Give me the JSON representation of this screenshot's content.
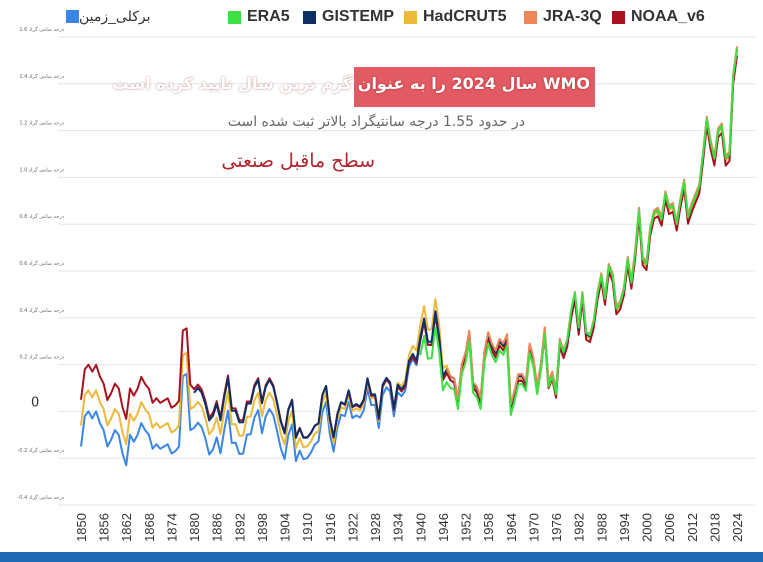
{
  "legend": {
    "berkeley": {
      "label": "برکلی_زمین",
      "color": "#3a86e8"
    },
    "era5": {
      "label": "ERA5",
      "color": "#3ee043"
    },
    "gistemp": {
      "label": "GISTEMP",
      "color": "#0e2f66"
    },
    "hadcrut5": {
      "label": "HadCRUT5",
      "color": "#ecb93b"
    },
    "jra3q": {
      "label": "JRA-3Q",
      "color": "#ec8757"
    },
    "noaa": {
      "label": "NOAA_v6",
      "color": "#a6131f"
    }
  },
  "annotations": {
    "title": "WMO سال 2024 را به عنوان گرم ترین سال تایید کرده است",
    "subtitle": "در حدود 1.55 درجه سانتیگراد بالاتر ثبت شده است",
    "baseline_note": "سطح ماقبل صنعتی",
    "title_box_color": "#e25a63"
  },
  "chart_data": {
    "type": "line",
    "x_start": 1850,
    "x_end": 2024,
    "ylim": [
      -0.4,
      1.6
    ],
    "yticks": [
      {
        "value": 1.6,
        "label": "1.6 درجه سانتی گراد"
      },
      {
        "value": 1.4,
        "label": "1.4 درجه سانتی گراد"
      },
      {
        "value": 1.2,
        "label": "1.2 درجه سانتی گراد"
      },
      {
        "value": 1.0,
        "label": "1.0 درجه سانتی گراد"
      },
      {
        "value": 0.8,
        "label": "0.8 درجه سانتی گراد"
      },
      {
        "value": 0.6,
        "label": "0.6 درجه سانتی گراد"
      },
      {
        "value": 0.4,
        "label": "0.4 درجه سانتی گراد"
      },
      {
        "value": 0.2,
        "label": "0.2 درجه سانتی گراد"
      },
      {
        "value": 0,
        "label": "0"
      },
      {
        "value": -0.2,
        "label": "-0.2 درجه سانتی گراد"
      },
      {
        "value": -0.4,
        "label": "-0.4 درجه سانتی گراد"
      }
    ],
    "xticks": [
      "1850",
      "1856",
      "1862",
      "1868",
      "1874",
      "1880",
      "1886",
      "1892",
      "1898",
      "1904",
      "1910",
      "1916",
      "1922",
      "1928",
      "1934",
      "1940",
      "1946",
      "1952",
      "1958",
      "1964",
      "1970",
      "1976",
      "1982",
      "1988",
      "1994",
      "2000",
      "2006",
      "2012",
      "2018",
      "2024"
    ],
    "anchors": [
      [
        1850,
        0.05
      ],
      [
        1851,
        0.18
      ],
      [
        1852,
        0.2
      ],
      [
        1853,
        0.17
      ],
      [
        1854,
        0.2
      ],
      [
        1855,
        0.15
      ],
      [
        1856,
        0.12
      ],
      [
        1857,
        0.05
      ],
      [
        1858,
        0.08
      ],
      [
        1859,
        0.12
      ],
      [
        1860,
        0.1
      ],
      [
        1861,
        0.02
      ],
      [
        1862,
        -0.03
      ],
      [
        1863,
        0.1
      ],
      [
        1864,
        0.07
      ],
      [
        1865,
        0.1
      ],
      [
        1866,
        0.15
      ],
      [
        1867,
        0.12
      ],
      [
        1868,
        0.1
      ],
      [
        1869,
        0.04
      ],
      [
        1870,
        0.06
      ],
      [
        1871,
        0.04
      ],
      [
        1872,
        0.05
      ],
      [
        1873,
        0.06
      ],
      [
        1874,
        0.02
      ],
      [
        1875,
        0.03
      ],
      [
        1876,
        0.05
      ],
      [
        1877,
        0.35
      ],
      [
        1878,
        0.36
      ],
      [
        1879,
        0.12
      ],
      [
        1880,
        0.1
      ],
      [
        1881,
        0.12
      ],
      [
        1882,
        0.1
      ],
      [
        1883,
        0.05
      ],
      [
        1884,
        -0.02
      ],
      [
        1885,
        0.0
      ],
      [
        1886,
        0.05
      ],
      [
        1887,
        -0.02
      ],
      [
        1888,
        0.08
      ],
      [
        1889,
        0.16
      ],
      [
        1890,
        0.02
      ],
      [
        1891,
        0.02
      ],
      [
        1892,
        -0.03
      ],
      [
        1893,
        -0.03
      ],
      [
        1894,
        0.05
      ],
      [
        1895,
        0.05
      ],
      [
        1896,
        0.12
      ],
      [
        1897,
        0.15
      ],
      [
        1898,
        0.05
      ],
      [
        1899,
        0.12
      ],
      [
        1900,
        0.15
      ],
      [
        1901,
        0.12
      ],
      [
        1902,
        0.05
      ],
      [
        1903,
        -0.03
      ],
      [
        1904,
        -0.08
      ],
      [
        1905,
        0.02
      ],
      [
        1906,
        0.06
      ],
      [
        1907,
        -0.1
      ],
      [
        1908,
        -0.06
      ],
      [
        1909,
        -0.1
      ],
      [
        1910,
        -0.1
      ],
      [
        1911,
        -0.08
      ],
      [
        1912,
        -0.05
      ],
      [
        1913,
        -0.04
      ],
      [
        1914,
        0.08
      ],
      [
        1915,
        0.12
      ],
      [
        1916,
        -0.02
      ],
      [
        1917,
        -0.1
      ],
      [
        1918,
        0.0
      ],
      [
        1919,
        0.05
      ],
      [
        1920,
        0.04
      ],
      [
        1921,
        0.1
      ],
      [
        1922,
        0.03
      ],
      [
        1923,
        0.04
      ],
      [
        1924,
        0.03
      ],
      [
        1925,
        0.06
      ],
      [
        1926,
        0.15
      ],
      [
        1927,
        0.08
      ],
      [
        1928,
        0.08
      ],
      [
        1929,
        -0.02
      ],
      [
        1930,
        0.12
      ],
      [
        1931,
        0.15
      ],
      [
        1932,
        0.13
      ],
      [
        1933,
        0.02
      ],
      [
        1934,
        0.12
      ],
      [
        1935,
        0.1
      ],
      [
        1936,
        0.12
      ],
      [
        1937,
        0.22
      ],
      [
        1938,
        0.25
      ],
      [
        1939,
        0.22
      ],
      [
        1940,
        0.32
      ],
      [
        1941,
        0.4
      ],
      [
        1942,
        0.3
      ],
      [
        1943,
        0.3
      ],
      [
        1944,
        0.43
      ],
      [
        1945,
        0.32
      ],
      [
        1946,
        0.15
      ],
      [
        1947,
        0.18
      ],
      [
        1948,
        0.15
      ],
      [
        1949,
        0.14
      ],
      [
        1950,
        0.05
      ],
      [
        1951,
        0.2
      ],
      [
        1952,
        0.25
      ],
      [
        1953,
        0.34
      ],
      [
        1954,
        0.12
      ],
      [
        1955,
        0.1
      ],
      [
        1956,
        0.05
      ],
      [
        1957,
        0.25
      ],
      [
        1958,
        0.33
      ],
      [
        1959,
        0.28
      ],
      [
        1960,
        0.25
      ],
      [
        1961,
        0.3
      ],
      [
        1962,
        0.28
      ],
      [
        1963,
        0.32
      ],
      [
        1964,
        0.02
      ],
      [
        1965,
        0.08
      ],
      [
        1966,
        0.15
      ],
      [
        1967,
        0.15
      ],
      [
        1968,
        0.12
      ],
      [
        1969,
        0.28
      ],
      [
        1970,
        0.22
      ],
      [
        1971,
        0.1
      ],
      [
        1972,
        0.2
      ],
      [
        1973,
        0.35
      ],
      [
        1974,
        0.12
      ],
      [
        1975,
        0.16
      ],
      [
        1976,
        0.08
      ],
      [
        1977,
        0.3
      ],
      [
        1978,
        0.25
      ],
      [
        1979,
        0.3
      ],
      [
        1980,
        0.42
      ],
      [
        1981,
        0.5
      ],
      [
        1982,
        0.35
      ],
      [
        1983,
        0.5
      ],
      [
        1984,
        0.33
      ],
      [
        1985,
        0.32
      ],
      [
        1986,
        0.38
      ],
      [
        1987,
        0.5
      ],
      [
        1988,
        0.58
      ],
      [
        1989,
        0.48
      ],
      [
        1990,
        0.62
      ],
      [
        1991,
        0.58
      ],
      [
        1992,
        0.44
      ],
      [
        1993,
        0.46
      ],
      [
        1994,
        0.52
      ],
      [
        1995,
        0.65
      ],
      [
        1996,
        0.55
      ],
      [
        1997,
        0.68
      ],
      [
        1998,
        0.86
      ],
      [
        1999,
        0.65
      ],
      [
        2000,
        0.63
      ],
      [
        2001,
        0.78
      ],
      [
        2002,
        0.85
      ],
      [
        2003,
        0.86
      ],
      [
        2004,
        0.82
      ],
      [
        2005,
        0.93
      ],
      [
        2006,
        0.87
      ],
      [
        2007,
        0.88
      ],
      [
        2008,
        0.8
      ],
      [
        2009,
        0.9
      ],
      [
        2010,
        0.98
      ],
      [
        2011,
        0.83
      ],
      [
        2012,
        0.88
      ],
      [
        2013,
        0.92
      ],
      [
        2014,
        0.96
      ],
      [
        2015,
        1.1
      ],
      [
        2016,
        1.25
      ],
      [
        2017,
        1.15
      ],
      [
        2018,
        1.08
      ],
      [
        2019,
        1.2
      ],
      [
        2020,
        1.22
      ],
      [
        2021,
        1.08
      ],
      [
        2022,
        1.1
      ],
      [
        2023,
        1.43
      ],
      [
        2024,
        1.55
      ]
    ],
    "series": [
      {
        "key": "berkeley",
        "name": "برکلی_زمین",
        "color": "#3a86e8",
        "start": 1850,
        "end": 2024,
        "offsets": [
          [
            1850,
            -0.2
          ],
          [
            1879,
            -0.2
          ],
          [
            1880,
            -0.17
          ],
          [
            1900,
            -0.14
          ],
          [
            1920,
            -0.06
          ],
          [
            1930,
            -0.05
          ],
          [
            1940,
            -0.02
          ],
          [
            1945,
            -0.01
          ],
          [
            1950,
            -0.02
          ],
          [
            1960,
            -0.02
          ],
          [
            1970,
            -0.01
          ],
          [
            1980,
            0.0
          ],
          [
            2024,
            0.0
          ]
        ]
      },
      {
        "key": "hadcrut5",
        "name": "HadCRUT5",
        "color": "#ecb93b",
        "start": 1850,
        "end": 2024,
        "offsets": [
          [
            1850,
            -0.11
          ],
          [
            1879,
            -0.11
          ],
          [
            1880,
            -0.08
          ],
          [
            1900,
            -0.07
          ],
          [
            1920,
            -0.03
          ],
          [
            1930,
            -0.02
          ],
          [
            1937,
            0.02
          ],
          [
            1940,
            0.05
          ],
          [
            1945,
            0.05
          ],
          [
            1948,
            0.0
          ],
          [
            1960,
            -0.01
          ],
          [
            1980,
            -0.01
          ],
          [
            2024,
            -0.01
          ]
        ]
      },
      {
        "key": "noaa",
        "name": "NOAA_v6",
        "color": "#a6131f",
        "start": 1850,
        "end": 2024,
        "offsets": [
          [
            1850,
            0.0
          ],
          [
            2024,
            -0.03
          ]
        ]
      },
      {
        "key": "gistemp",
        "name": "GISTEMP",
        "color": "#0e2f66",
        "start": 1880,
        "end": 2024,
        "offsets": [
          [
            1880,
            -0.02
          ],
          [
            1920,
            -0.01
          ],
          [
            1950,
            0.0
          ],
          [
            2024,
            0.0
          ]
        ]
      },
      {
        "key": "jra3q",
        "name": "JRA-3Q",
        "color": "#ec8757",
        "start": 1947,
        "end": 2024,
        "offsets": [
          [
            1947,
            0.0
          ],
          [
            1960,
            0.01
          ],
          [
            2024,
            0.01
          ]
        ]
      },
      {
        "key": "era5",
        "name": "ERA5",
        "color": "#3ee043",
        "start": 1940,
        "end": 2024,
        "offsets": [
          [
            1940,
            -0.08
          ],
          [
            1944,
            -0.07
          ],
          [
            1950,
            -0.04
          ],
          [
            1960,
            -0.04
          ],
          [
            1970,
            -0.03
          ],
          [
            1980,
            0.01
          ],
          [
            1990,
            0.0
          ],
          [
            2024,
            0.0
          ]
        ]
      }
    ]
  }
}
